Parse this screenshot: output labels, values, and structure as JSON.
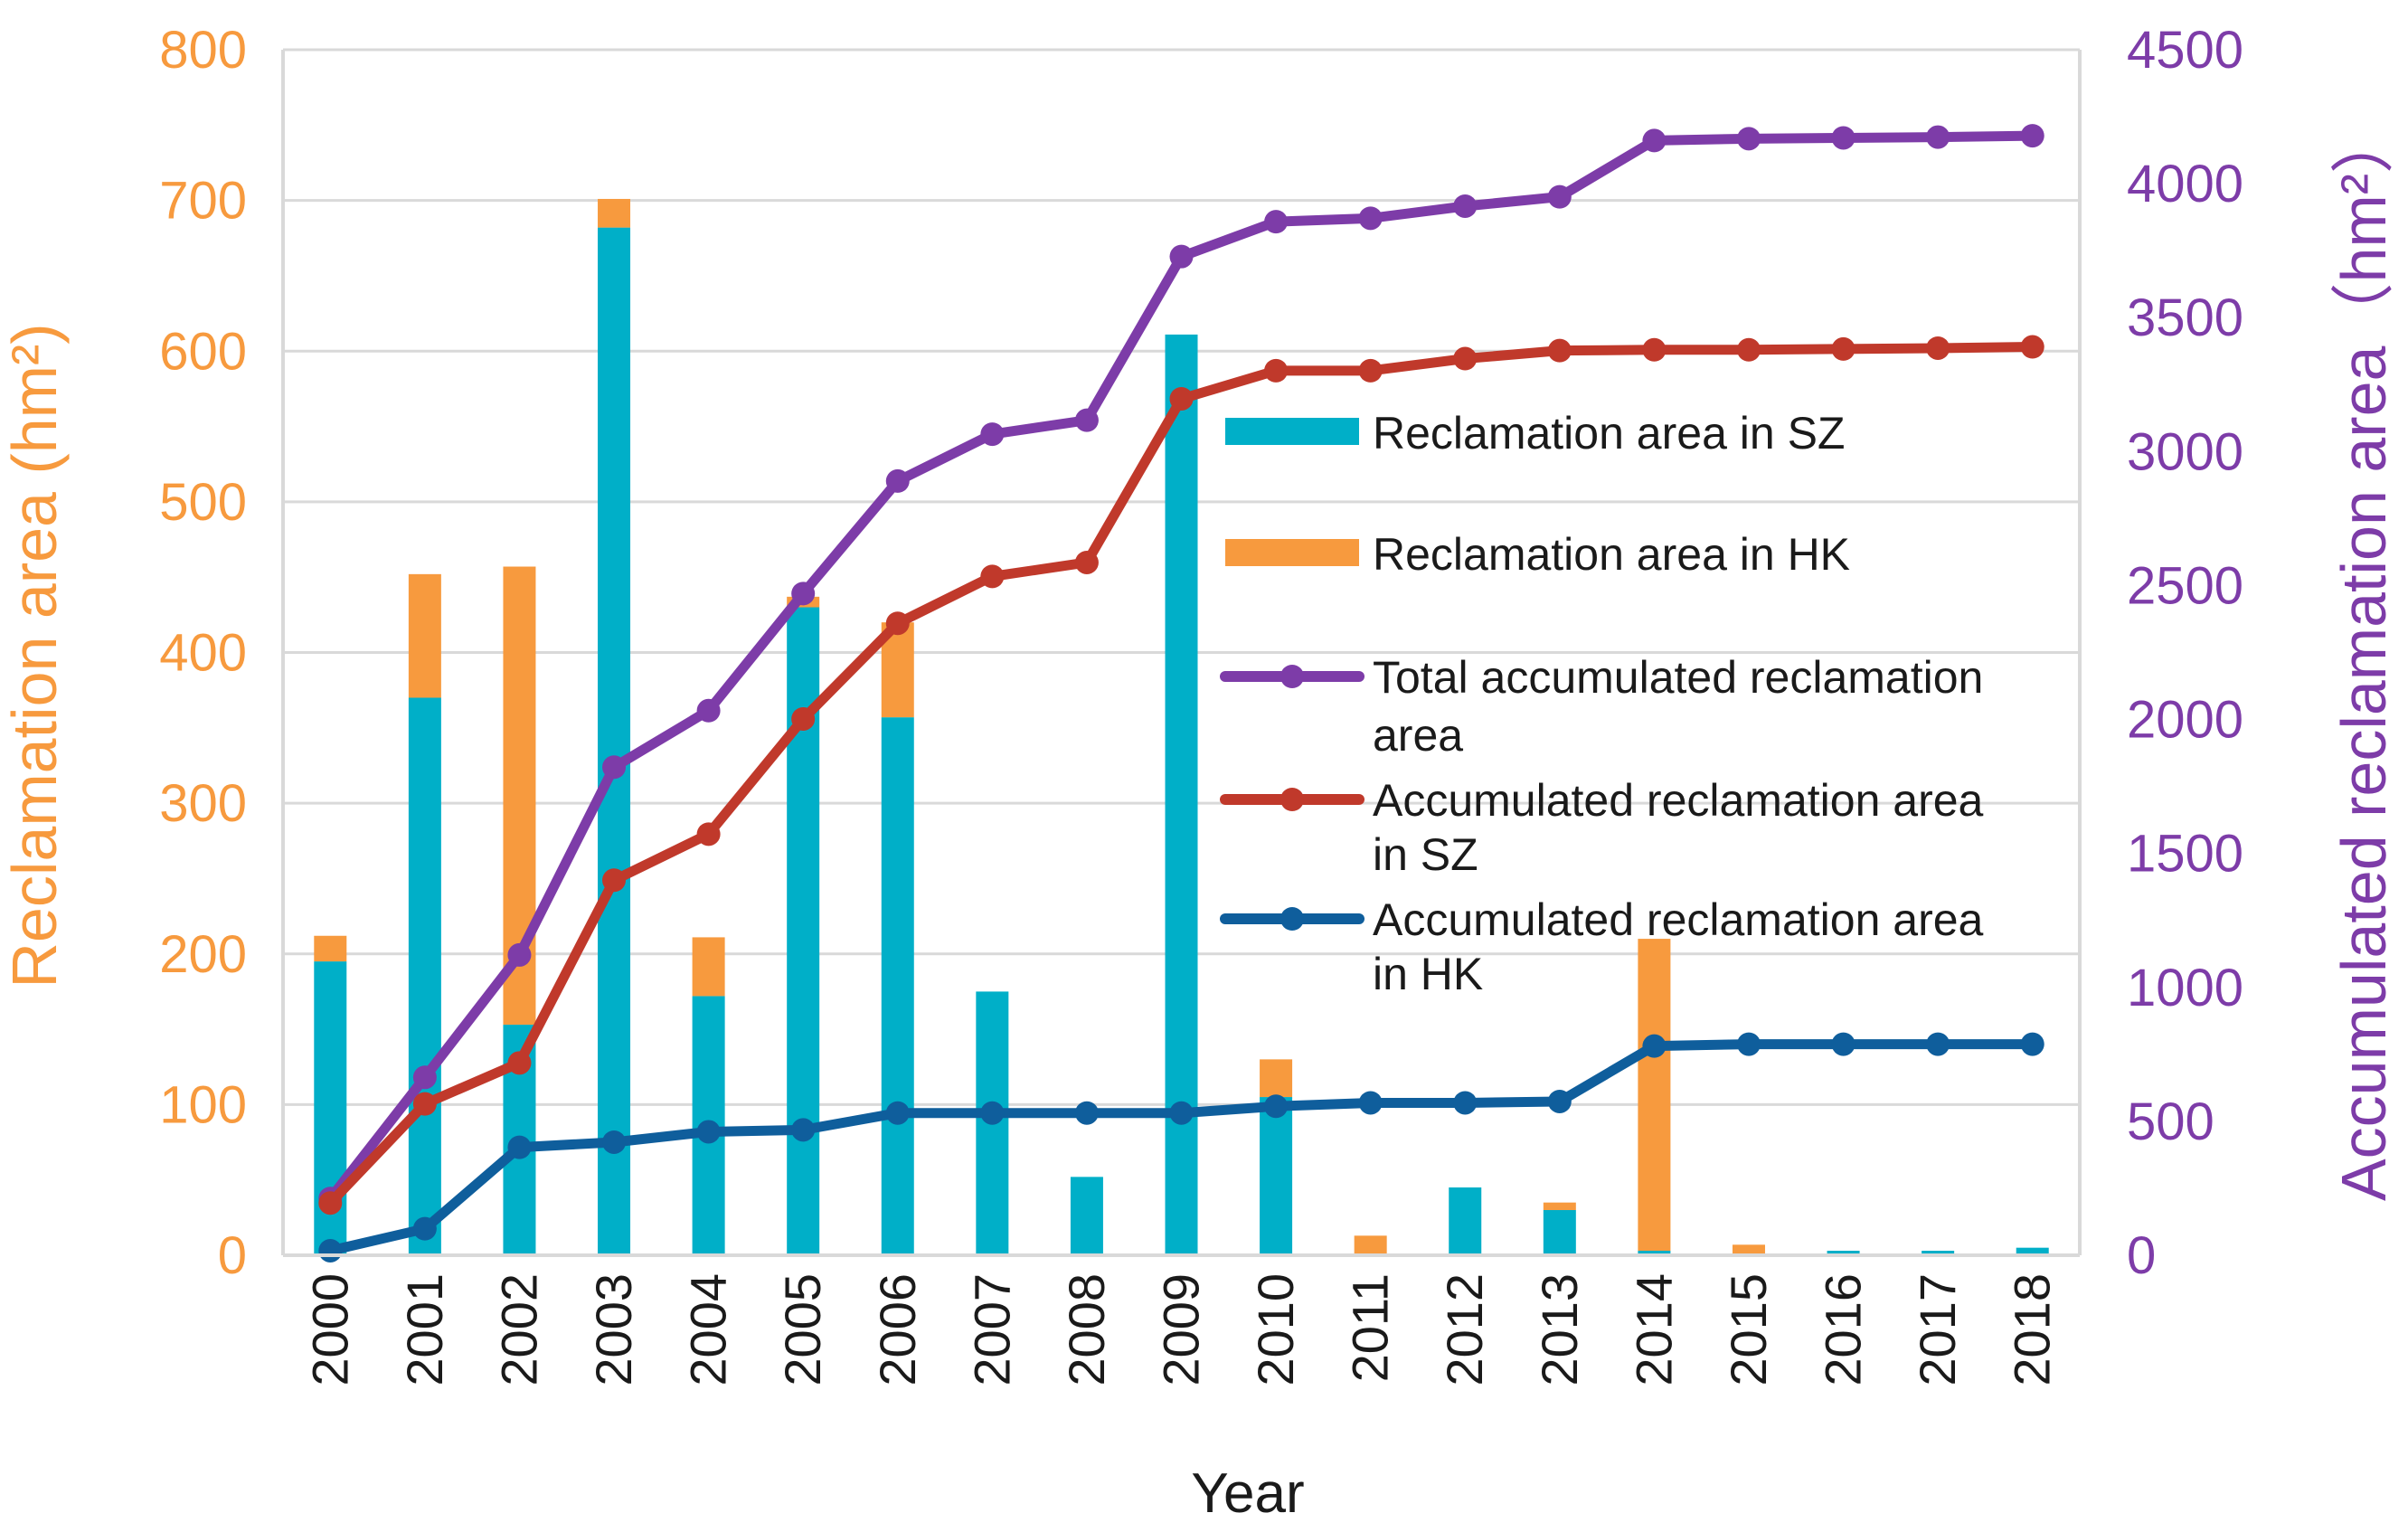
{
  "chart_data": {
    "type": "bar+line",
    "title": "",
    "xlabel": "Year",
    "ylabel_left": "Reclamation area (hm²)",
    "ylabel_right": "Accumulated reclamation area（hm²）",
    "ylim_left": [
      0,
      800
    ],
    "ylim_right": [
      0,
      4500
    ],
    "yticks_left": [
      "0",
      "100",
      "200",
      "300",
      "400",
      "500",
      "600",
      "700",
      "800"
    ],
    "yticks_right": [
      "0",
      "500",
      "1000",
      "1500",
      "2000",
      "2500",
      "3000",
      "3500",
      "4000",
      "4500"
    ],
    "categories": [
      "2000",
      "2001",
      "2002",
      "2003",
      "2004",
      "2005",
      "2006",
      "2007",
      "2008",
      "2009",
      "2010",
      "2011",
      "2012",
      "2013",
      "2014",
      "2015",
      "2016",
      "2017",
      "2018"
    ],
    "grid": "horizontal",
    "legend_position": "center-right",
    "bar_series": [
      {
        "name": "Reclamation area in SZ",
        "color": "#00AFC8",
        "axis": "left",
        "values": [
          195,
          370,
          153,
          682,
          172,
          430,
          357,
          175,
          52,
          611,
          105,
          0,
          45,
          30,
          3,
          0,
          3,
          3,
          5
        ]
      },
      {
        "name": "Reclamation area in HK",
        "color": "#F79A3E",
        "axis": "left",
        "values": [
          17,
          82,
          304,
          19,
          39,
          7,
          63,
          0,
          0,
          0,
          25,
          13,
          0,
          5,
          207,
          7,
          0,
          0,
          0
        ]
      }
    ],
    "line_series": [
      {
        "name": "Total accumulated reclamation area",
        "color": "#7D3CA8",
        "axis": "right",
        "values": [
          212,
          664,
          1121,
          1822,
          2033,
          2470,
          2890,
          3065,
          3117,
          3728,
          3858,
          3871,
          3916,
          3951,
          4161,
          4168,
          4171,
          4174,
          4179
        ]
      },
      {
        "name": "Accumulated reclamation area in SZ",
        "color": "#C0392B",
        "axis": "right",
        "values": [
          195,
          565,
          718,
          1400,
          1572,
          2002,
          2359,
          2534,
          2586,
          3197,
          3302,
          3302,
          3347,
          3377,
          3380,
          3380,
          3383,
          3386,
          3391
        ]
      },
      {
        "name": "Accumulated reclamation area in HK",
        "color": "#0F5E9C",
        "axis": "right",
        "values": [
          17,
          99,
          403,
          422,
          461,
          468,
          531,
          531,
          531,
          531,
          556,
          569,
          569,
          574,
          781,
          788,
          788,
          788,
          788
        ]
      }
    ]
  }
}
